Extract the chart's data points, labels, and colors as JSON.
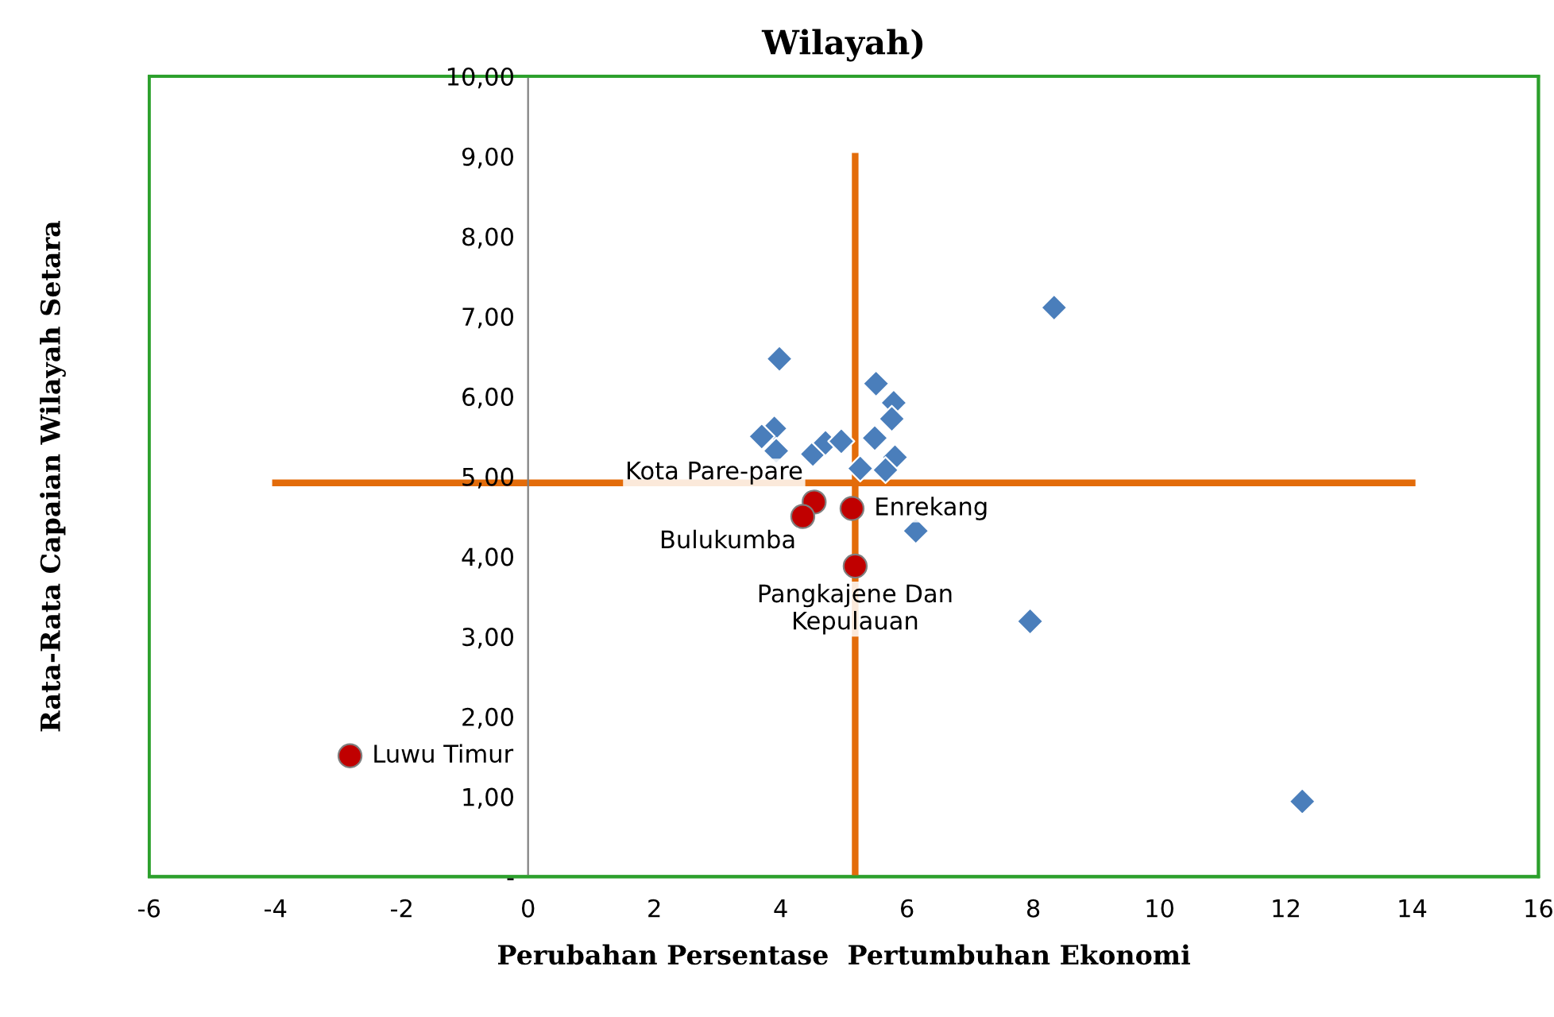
{
  "chart_data": {
    "type": "scatter",
    "title": "Wilayah)",
    "xlabel": "Perubahan Persentase  Pertumbuhan Ekonomi",
    "ylabel": "Rata-Rata Capaian Wilayah Setara",
    "xlim": [
      -6,
      16
    ],
    "xticks": [
      -6,
      -4,
      -2,
      0,
      2,
      4,
      6,
      8,
      10,
      12,
      14,
      16
    ],
    "ylim": [
      0,
      10
    ],
    "yticks": [
      {
        "value": 0,
        "label": "-"
      },
      {
        "value": 1,
        "label": "1,00"
      },
      {
        "value": 2,
        "label": "2,00"
      },
      {
        "value": 3,
        "label": "3,00"
      },
      {
        "value": 4,
        "label": "4,00"
      },
      {
        "value": 5,
        "label": "5,00"
      },
      {
        "value": 6,
        "label": "6,00"
      },
      {
        "value": 7,
        "label": "7,00"
      },
      {
        "value": 8,
        "label": "8,00"
      },
      {
        "value": 9,
        "label": "9,00"
      },
      {
        "value": 10,
        "label": "10,00"
      }
    ],
    "grid": false,
    "legend": false,
    "series": [
      {
        "type": "line",
        "color": "#e36c0a",
        "marker": "none",
        "x": [
          -4,
          14
        ],
        "values": [
          4.92,
          4.92
        ]
      },
      {
        "type": "line",
        "color": "#e36c0a",
        "marker": "none",
        "x": [
          5.18,
          5.18
        ],
        "values": [
          0,
          9
        ]
      },
      {
        "color": "#4a7ebb",
        "marker": "diamond",
        "x": [
          3.98,
          8.33,
          5.51,
          5.79,
          5.76,
          5.49,
          5.81,
          5.66,
          5.26,
          3.9,
          3.7,
          3.93,
          4.51,
          4.71,
          4.96,
          6.14,
          7.95,
          12.26
        ],
        "values": [
          6.47,
          7.11,
          6.16,
          5.92,
          5.72,
          5.48,
          5.24,
          5.08,
          5.1,
          5.6,
          5.5,
          5.32,
          5.28,
          5.42,
          5.44,
          4.32,
          3.19,
          0.94
        ]
      },
      {
        "color": "#c00000",
        "marker": "circle",
        "x": [
          4.53,
          4.35,
          5.13,
          5.18,
          -2.82
        ],
        "values": [
          4.68,
          4.5,
          4.6,
          3.88,
          1.51
        ]
      }
    ],
    "annotations": [
      {
        "text": "Kota Pare-pare",
        "x": 4.53,
        "y": 4.68
      },
      {
        "text": "Bulukumba",
        "x": 4.35,
        "y": 4.5
      },
      {
        "text": "Enrekang",
        "x": 5.13,
        "y": 4.6
      },
      {
        "text": "Pangkajene Dan\nKepulauan",
        "x": 5.18,
        "y": 3.88
      },
      {
        "text": "Luwu Timur",
        "x": -2.82,
        "y": 1.51
      }
    ]
  }
}
